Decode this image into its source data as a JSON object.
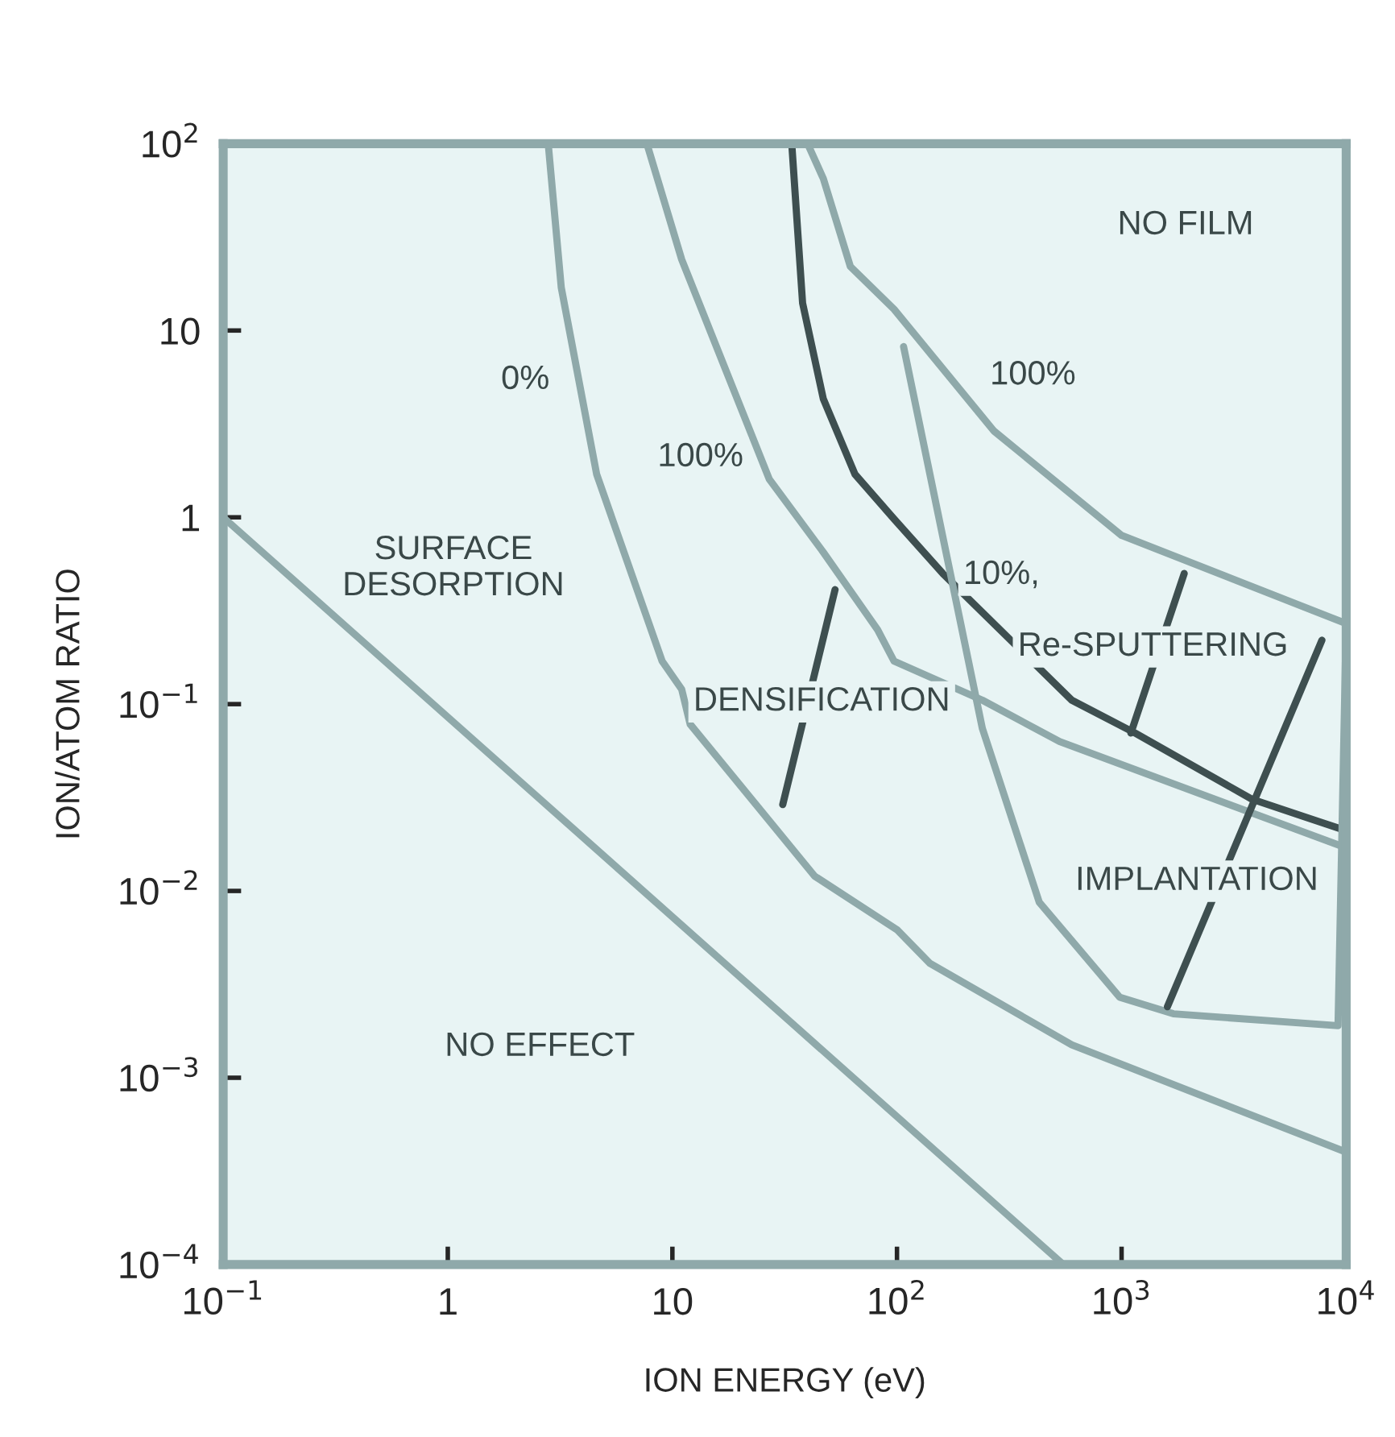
{
  "chart_data": {
    "type": "line",
    "xlabel": "ION ENERGY (eV)",
    "ylabel": "ION/ATOM RATIO",
    "log": "xy",
    "grid": false,
    "marker": "none",
    "line_style": "solid",
    "xlim": [
      0.1,
      10000
    ],
    "ylim": [
      0.0001,
      100
    ],
    "xticks": [
      {
        "value": 0.1,
        "label": "10$^{−1}$"
      },
      1,
      10,
      {
        "value": 100,
        "label": "10$^{2}$"
      },
      {
        "value": 1000,
        "label": "10$^{3}$"
      },
      {
        "value": 10000,
        "label": "10$^{4}$"
      }
    ],
    "yticks": [
      {
        "value": 0.0001,
        "label": "10$^{−4}$"
      },
      {
        "value": 0.001,
        "label": "10$^{−3}$"
      },
      {
        "value": 0.01,
        "label": "10$^{−2}$"
      },
      {
        "value": 0.1,
        "label": "10$^{−1}$"
      },
      1,
      10,
      {
        "value": 100,
        "label": "10$^{2}$"
      }
    ],
    "series": [
      {
        "color": "#8fa9aa",
        "x": [
          0.1,
          550
        ],
        "values": [
          1.0,
          0.0001
        ]
      },
      {
        "color": "#8fa9aa",
        "x": [
          2.8,
          3.2,
          4.6,
          9.0,
          11,
          12,
          43,
          100,
          140,
          600,
          10000
        ],
        "values": [
          100,
          17,
          1.7,
          0.17,
          0.12,
          0.078,
          0.012,
          0.0062,
          0.0041,
          0.0015,
          0.0004
        ]
      },
      {
        "color": "#8fa9aa",
        "x": [
          7.7,
          11,
          27,
          47,
          82,
          97,
          240,
          530,
          10000
        ],
        "values": [
          100,
          24,
          1.6,
          0.65,
          0.25,
          0.17,
          0.105,
          0.063,
          0.017
        ]
      },
      {
        "color": "#3e4f50",
        "x": [
          34,
          38,
          47,
          65,
          97,
          160,
          600,
          1150,
          3800,
          10000
        ],
        "values": [
          100,
          14,
          4.3,
          1.7,
          0.98,
          0.5,
          0.105,
          0.07,
          0.031,
          0.021
        ]
      },
      {
        "color": "#8fa9aa",
        "x": [
          40,
          47,
          62,
          97,
          270,
          1000,
          10000
        ],
        "values": [
          100,
          65,
          22,
          13,
          2.9,
          0.8,
          0.27
        ]
      },
      {
        "color": "#8fa9aa",
        "x": [
          107,
          240,
          430,
          980,
          1700,
          9200,
          10000
        ],
        "values": [
          8.2,
          0.074,
          0.0087,
          0.0027,
          0.0022,
          0.0019,
          0.27
        ]
      },
      {
        "color": "#3e4f50",
        "x": [
          53,
          31
        ],
        "values": [
          0.41,
          0.029
        ]
      },
      {
        "color": "#3e4f50",
        "x": [
          1900,
          1100
        ],
        "values": [
          0.5,
          0.07
        ]
      },
      {
        "color": "#3e4f50",
        "x": [
          7800,
          1600
        ],
        "values": [
          0.22,
          0.0024
        ]
      }
    ],
    "annotations": [
      "SURFACE\nDESORPTION",
      "NO EFFECT",
      "0%",
      "100%",
      "DENSIFICATION",
      "NO FILM",
      "100%",
      "10%,",
      "Re-SPUTTERING",
      "IMPLANTATION"
    ]
  }
}
